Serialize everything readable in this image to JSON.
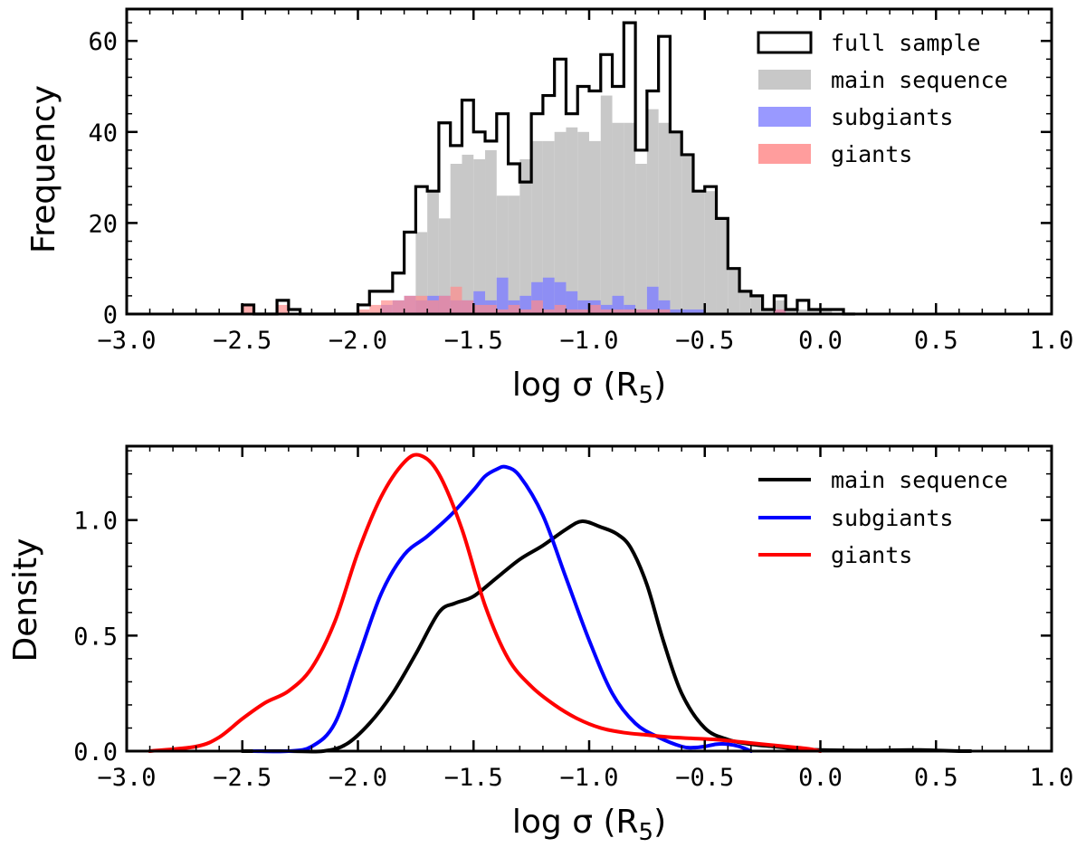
{
  "colors": {
    "full_sample": "#000000",
    "main_sequence_fill": "#c8c8c8",
    "subgiants_fill": "#8080ff",
    "giants_fill": "#ff8c8c",
    "main_sequence_line": "#000000",
    "subgiants_line": "#0000ff",
    "giants_line": "#ff0000"
  },
  "chart_data": [
    {
      "type": "bar",
      "subtype": "histogram",
      "ylabel": "Frequency",
      "xlabel": "log σ (R",
      "xlabel_subscript": "5",
      "xlabel_close": ")",
      "xlim": [
        -3.0,
        1.0
      ],
      "ylim": [
        0,
        67
      ],
      "xticks": [
        -3.0,
        -2.5,
        -2.0,
        -1.5,
        -1.0,
        -0.5,
        0.0,
        0.5,
        1.0
      ],
      "xtick_labels": [
        "−3.0",
        "−2.5",
        "−2.0",
        "−1.5",
        "−1.0",
        "−0.5",
        "0.0",
        "0.5",
        "1.0"
      ],
      "yticks": [
        0,
        20,
        40,
        60
      ],
      "ytick_labels": [
        "0",
        "20",
        "40",
        "60"
      ],
      "legend_position": "top-right",
      "legend": [
        {
          "label": "full sample",
          "style": "step"
        },
        {
          "label": "main sequence",
          "style": "fill"
        },
        {
          "label": "subgiants",
          "style": "fill"
        },
        {
          "label": "giants",
          "style": "fill"
        }
      ],
      "bin_start": -2.5,
      "bin_width": 0.05,
      "series": [
        {
          "name": "full sample",
          "values": [
            2,
            0,
            0,
            3,
            1,
            0,
            0,
            0,
            0,
            0,
            2,
            5,
            5,
            9,
            18,
            28,
            27,
            42,
            37,
            47,
            40,
            38,
            44,
            33,
            29,
            44,
            48,
            56,
            44,
            50,
            49,
            57,
            50,
            64,
            36,
            49,
            61,
            40,
            35,
            27,
            28,
            21,
            10,
            5,
            4,
            1,
            4,
            1,
            3,
            1,
            1,
            1,
            0
          ]
        },
        {
          "name": "main sequence",
          "values": [
            0,
            0,
            0,
            0,
            0,
            0,
            0,
            0,
            0,
            0,
            0,
            0,
            0,
            0,
            0,
            18,
            27,
            21,
            33,
            35,
            34,
            36,
            26,
            26,
            34,
            38,
            38,
            40,
            41,
            40,
            38,
            48,
            42,
            42,
            33,
            45,
            42,
            40,
            35,
            27,
            27,
            21,
            10,
            5,
            4,
            1,
            3,
            1,
            1,
            1,
            1,
            0,
            0
          ]
        },
        {
          "name": "subgiants",
          "values": [
            0,
            0,
            0,
            0,
            0,
            0,
            0,
            0,
            0,
            0,
            0,
            0,
            2,
            3,
            4,
            3,
            4,
            4,
            3,
            3,
            5,
            3,
            8,
            3,
            4,
            7,
            8,
            7,
            5,
            3,
            3,
            2,
            4,
            2,
            1,
            6,
            3,
            1,
            1,
            1,
            0,
            0,
            0,
            0,
            0,
            0,
            1,
            0,
            0,
            0,
            0,
            0,
            0
          ]
        },
        {
          "name": "giants",
          "values": [
            2,
            0,
            0,
            2,
            0,
            0,
            0,
            0,
            0,
            0,
            1,
            2,
            3,
            3,
            4,
            4,
            3,
            4,
            6,
            3,
            2,
            2,
            1,
            2,
            1,
            3,
            1,
            2,
            1,
            1,
            2,
            1,
            1,
            1,
            1,
            1,
            1,
            0,
            0,
            0,
            0,
            0,
            0,
            0,
            0,
            0,
            1,
            0,
            0,
            0,
            0,
            0,
            0
          ]
        }
      ]
    },
    {
      "type": "line",
      "subtype": "kde",
      "ylabel": "Density",
      "xlabel": "log σ (R",
      "xlabel_subscript": "5",
      "xlabel_close": ")",
      "xlim": [
        -3.0,
        1.0
      ],
      "ylim": [
        0,
        1.32
      ],
      "xticks": [
        -3.0,
        -2.5,
        -2.0,
        -1.5,
        -1.0,
        -0.5,
        0.0,
        0.5,
        1.0
      ],
      "xtick_labels": [
        "−3.0",
        "−2.5",
        "−2.0",
        "−1.5",
        "−1.0",
        "−0.5",
        "0.0",
        "0.5",
        "1.0"
      ],
      "yticks": [
        0,
        0.5,
        1.0
      ],
      "ytick_labels": [
        "0.0",
        "0.5",
        "1.0"
      ],
      "legend_position": "top-right",
      "legend": [
        {
          "label": "main sequence",
          "style": "line"
        },
        {
          "label": "subgiants",
          "style": "line"
        },
        {
          "label": "giants",
          "style": "line"
        }
      ],
      "series": [
        {
          "name": "main sequence",
          "x": [
            -2.5,
            -2.3,
            -2.15,
            -2.05,
            -1.95,
            -1.85,
            -1.75,
            -1.65,
            -1.58,
            -1.5,
            -1.4,
            -1.3,
            -1.2,
            -1.1,
            -1.03,
            -0.95,
            -0.88,
            -0.82,
            -0.75,
            -0.68,
            -0.6,
            -0.5,
            -0.4,
            -0.3,
            -0.2,
            -0.1,
            0.0,
            0.2,
            0.4,
            0.5,
            0.6,
            0.65
          ],
          "y": [
            0.0,
            0.0,
            0.0,
            0.03,
            0.12,
            0.25,
            0.42,
            0.6,
            0.64,
            0.67,
            0.75,
            0.83,
            0.89,
            0.96,
            0.995,
            0.97,
            0.94,
            0.88,
            0.72,
            0.48,
            0.25,
            0.1,
            0.05,
            0.03,
            0.02,
            0.01,
            0.005,
            0.003,
            0.005,
            0.003,
            0.0,
            0.0
          ]
        },
        {
          "name": "subgiants",
          "x": [
            -2.45,
            -2.3,
            -2.2,
            -2.1,
            -2.0,
            -1.9,
            -1.8,
            -1.7,
            -1.6,
            -1.5,
            -1.45,
            -1.4,
            -1.36,
            -1.3,
            -1.2,
            -1.1,
            -1.0,
            -0.9,
            -0.8,
            -0.7,
            -0.6,
            -0.55,
            -0.5,
            -0.45,
            -0.4,
            -0.35,
            -0.3
          ],
          "y": [
            0.0,
            0.0,
            0.02,
            0.12,
            0.4,
            0.68,
            0.85,
            0.93,
            1.02,
            1.13,
            1.19,
            1.22,
            1.23,
            1.19,
            1.02,
            0.75,
            0.48,
            0.25,
            0.12,
            0.06,
            0.02,
            0.015,
            0.02,
            0.03,
            0.03,
            0.02,
            0.0
          ]
        },
        {
          "name": "giants",
          "x": [
            -2.9,
            -2.7,
            -2.6,
            -2.5,
            -2.4,
            -2.3,
            -2.2,
            -2.1,
            -2.0,
            -1.9,
            -1.8,
            -1.73,
            -1.65,
            -1.55,
            -1.45,
            -1.35,
            -1.25,
            -1.15,
            -1.05,
            -0.95,
            -0.85,
            -0.75,
            -0.65,
            -0.55,
            -0.45,
            -0.35,
            -0.25,
            -0.15,
            -0.05,
            0.0
          ],
          "y": [
            0.0,
            0.02,
            0.06,
            0.14,
            0.21,
            0.26,
            0.36,
            0.56,
            0.86,
            1.1,
            1.25,
            1.28,
            1.2,
            0.96,
            0.63,
            0.4,
            0.28,
            0.2,
            0.14,
            0.1,
            0.08,
            0.07,
            0.06,
            0.055,
            0.05,
            0.04,
            0.03,
            0.02,
            0.01,
            0.0
          ]
        }
      ]
    }
  ]
}
